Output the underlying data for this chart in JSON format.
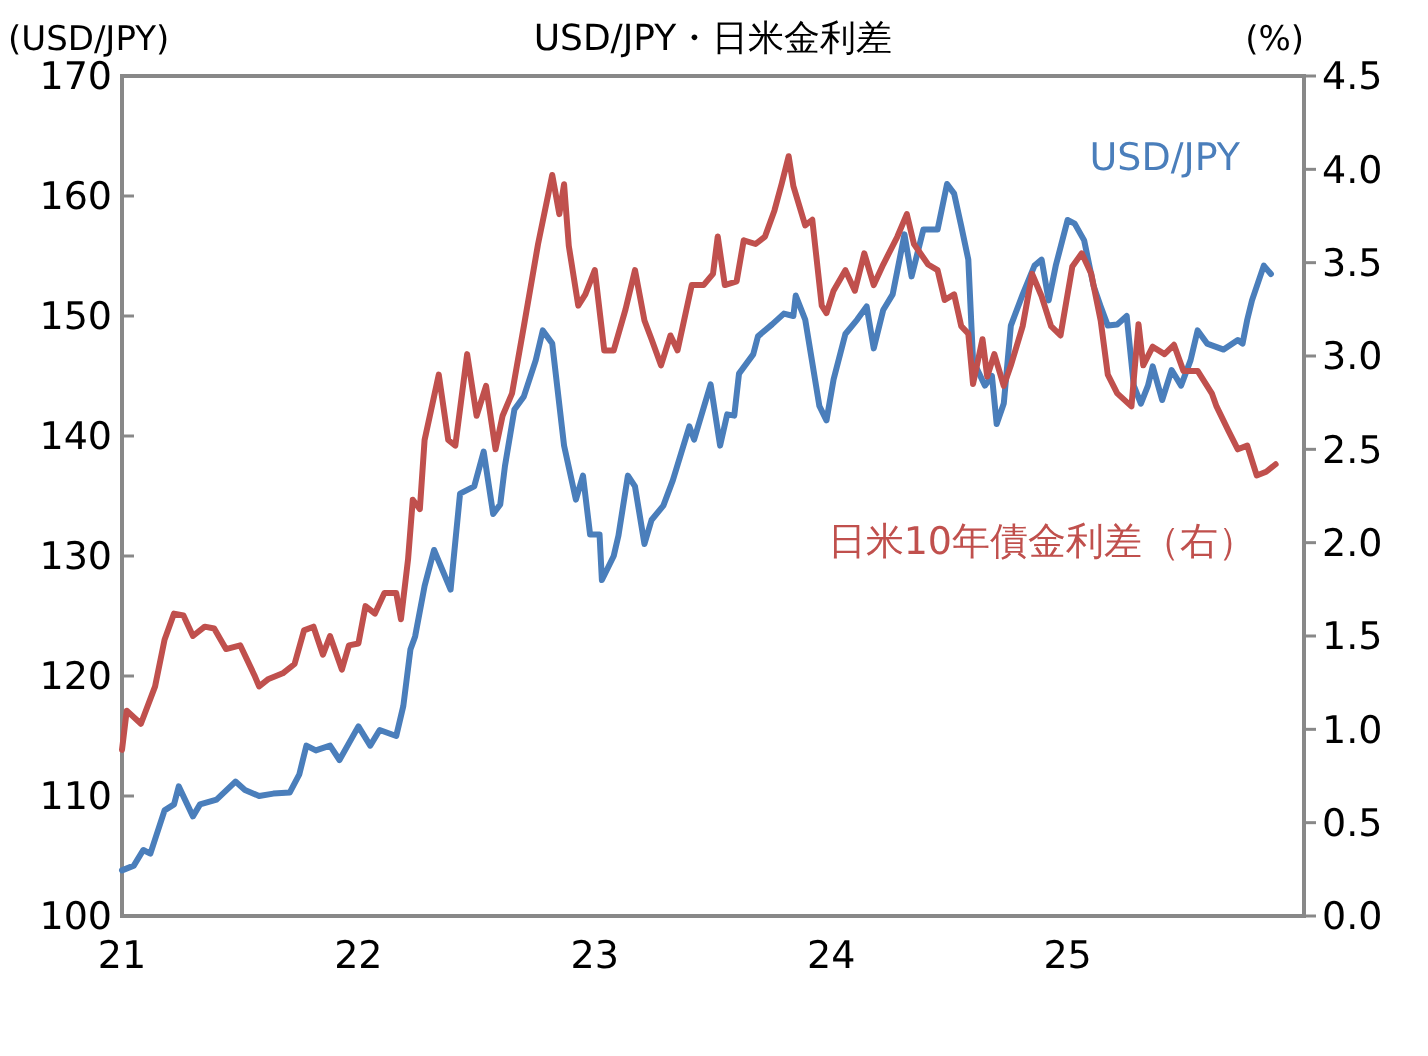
{
  "chart_data": {
    "type": "line",
    "title": "USD/JPY・日米金利差",
    "ylabel": "(USD/JPY)",
    "y2label": "(%)",
    "legend": false,
    "grid": false,
    "xlim": [
      2021,
      2026
    ],
    "xticks": [
      {
        "value": 2021,
        "label": "21"
      },
      {
        "value": 2022,
        "label": "22"
      },
      {
        "value": 2023,
        "label": "23"
      },
      {
        "value": 2024,
        "label": "24"
      },
      {
        "value": 2025,
        "label": "25"
      }
    ],
    "ylim": [
      100,
      170
    ],
    "yticks": [
      100,
      110,
      120,
      130,
      140,
      150,
      160,
      170
    ],
    "y2lim": [
      0,
      4.5
    ],
    "y2ticks": [
      {
        "value": 0,
        "label": "0.0"
      },
      {
        "value": 0.5,
        "label": "0.5"
      },
      {
        "value": 1,
        "label": "1.0"
      },
      {
        "value": 1.5,
        "label": "1.5"
      },
      {
        "value": 2,
        "label": "2.0"
      },
      {
        "value": 2.5,
        "label": "2.5"
      },
      {
        "value": 3,
        "label": "3.0"
      },
      {
        "value": 3.5,
        "label": "3.5"
      },
      {
        "value": 4,
        "label": "4.0"
      },
      {
        "value": 4.5,
        "label": "4.5"
      }
    ],
    "series": [
      {
        "name": "USD/JPY",
        "color": "#4a7ebb",
        "x": [
          2021.0,
          2021.05,
          2021.09,
          2021.12,
          2021.18,
          2021.22,
          2021.24,
          2021.3,
          2021.33,
          2021.4,
          2021.48,
          2021.52,
          2021.58,
          2021.64,
          2021.71,
          2021.75,
          2021.78,
          2021.82,
          2021.88,
          2021.92,
          2022.0,
          2022.05,
          2022.09,
          2022.16,
          2022.19,
          2022.22,
          2022.24,
          2022.28,
          2022.32,
          2022.39,
          2022.43,
          2022.49,
          2022.53,
          2022.57,
          2022.6,
          2022.62,
          2022.66,
          2022.7,
          2022.75,
          2022.78,
          2022.82,
          2022.87,
          2022.92,
          2022.95,
          2022.98,
          2023.02,
          2023.03,
          2023.08,
          2023.1,
          2023.14,
          2023.17,
          2023.21,
          2023.24,
          2023.29,
          2023.33,
          2023.4,
          2023.42,
          2023.49,
          2023.53,
          2023.56,
          2023.59,
          2023.61,
          2023.67,
          2023.69,
          2023.75,
          2023.8,
          2023.84,
          2023.85,
          2023.89,
          2023.95,
          2023.98,
          2024.01,
          2024.06,
          2024.11,
          2024.15,
          2024.18,
          2024.22,
          2024.26,
          2024.31,
          2024.34,
          2024.39,
          2024.45,
          2024.49,
          2024.52,
          2024.55,
          2024.58,
          2024.6,
          2024.65,
          2024.68,
          2024.7,
          2024.73,
          2024.76,
          2024.81,
          2024.86,
          2024.89,
          2024.92,
          2024.95,
          2025.0,
          2025.03,
          2025.07,
          2025.11,
          2025.14,
          2025.17,
          2025.21,
          2025.25,
          2025.28,
          2025.31,
          2025.34,
          2025.36,
          2025.4,
          2025.44,
          2025.48,
          2025.52,
          2025.55,
          2025.59,
          2025.66,
          2025.72,
          2025.74,
          2025.76,
          2025.78,
          2025.83,
          2025.86
        ],
        "values": [
          103.8,
          104.2,
          105.5,
          105.2,
          108.8,
          109.3,
          110.8,
          108.3,
          109.3,
          109.7,
          111.2,
          110.5,
          110,
          110.2,
          110.3,
          111.8,
          114.2,
          113.8,
          114.2,
          113,
          115.8,
          114.2,
          115.5,
          115,
          117.5,
          122.2,
          123.3,
          127.5,
          130.5,
          127.2,
          135.2,
          135.8,
          138.7,
          133.5,
          134.3,
          137.5,
          142.2,
          143.3,
          146.3,
          148.8,
          147.7,
          139.2,
          134.7,
          136.7,
          131.8,
          131.8,
          128,
          130,
          131.7,
          136.7,
          135.8,
          131,
          133,
          134.2,
          136.3,
          140.8,
          139.7,
          144.3,
          139.2,
          141.8,
          141.7,
          145.2,
          146.8,
          148.3,
          149.3,
          150.2,
          150,
          151.7,
          149.7,
          142.5,
          141.3,
          144.7,
          148.5,
          149.7,
          150.8,
          147.3,
          150.5,
          151.8,
          156.8,
          153.3,
          157.2,
          157.2,
          161,
          160.2,
          157.5,
          154.7,
          146.3,
          144.2,
          145,
          141,
          142.7,
          149.2,
          151.8,
          154.2,
          154.7,
          151.3,
          154.2,
          158,
          157.7,
          156.3,
          152.5,
          150.8,
          149.2,
          149.3,
          150,
          144.2,
          142.7,
          144.2,
          145.8,
          143,
          145.5,
          144.2,
          146.3,
          148.8,
          147.7,
          147.2,
          148,
          147.7,
          149.7,
          151.3,
          154.2,
          153.5
        ]
      },
      {
        "name": "日米10年債金利差（右）",
        "color": "#c0504d",
        "axis": "y2",
        "x": [
          2021.0,
          2021.02,
          2021.08,
          2021.14,
          2021.18,
          2021.22,
          2021.26,
          2021.3,
          2021.35,
          2021.39,
          2021.44,
          2021.5,
          2021.56,
          2021.58,
          2021.62,
          2021.68,
          2021.73,
          2021.77,
          2021.81,
          2021.85,
          2021.88,
          2021.93,
          2021.96,
          2022.0,
          2022.03,
          2022.07,
          2022.11,
          2022.16,
          2022.18,
          2022.21,
          2022.23,
          2022.26,
          2022.28,
          2022.34,
          2022.38,
          2022.41,
          2022.46,
          2022.5,
          2022.54,
          2022.58,
          2022.61,
          2022.65,
          2022.7,
          2022.76,
          2022.82,
          2022.85,
          2022.87,
          2022.89,
          2022.93,
          2022.96,
          2023.0,
          2023.04,
          2023.08,
          2023.13,
          2023.17,
          2023.21,
          2023.24,
          2023.28,
          2023.32,
          2023.35,
          2023.41,
          2023.46,
          2023.5,
          2023.52,
          2023.55,
          2023.6,
          2023.63,
          2023.68,
          2023.72,
          2023.76,
          2023.79,
          2023.82,
          2023.84,
          2023.89,
          2023.92,
          2023.96,
          2023.98,
          2024.01,
          2024.06,
          2024.1,
          2024.14,
          2024.18,
          2024.22,
          2024.28,
          2024.32,
          2024.35,
          2024.41,
          2024.45,
          2024.48,
          2024.52,
          2024.55,
          2024.58,
          2024.6,
          2024.64,
          2024.66,
          2024.69,
          2024.73,
          2024.76,
          2024.81,
          2024.85,
          2024.89,
          2024.93,
          2024.97,
          2025.02,
          2025.06,
          2025.1,
          2025.14,
          2025.17,
          2025.21,
          2025.27,
          2025.3,
          2025.32,
          2025.36,
          2025.41,
          2025.45,
          2025.49,
          2025.55,
          2025.61,
          2025.63,
          2025.68,
          2025.72,
          2025.76,
          2025.8,
          2025.84,
          2025.88
        ],
        "values": [
          0.89,
          1.1,
          1.03,
          1.23,
          1.48,
          1.62,
          1.61,
          1.5,
          1.55,
          1.54,
          1.43,
          1.45,
          1.29,
          1.23,
          1.27,
          1.3,
          1.35,
          1.53,
          1.55,
          1.4,
          1.5,
          1.32,
          1.45,
          1.46,
          1.66,
          1.62,
          1.73,
          1.73,
          1.59,
          1.91,
          2.23,
          2.18,
          2.55,
          2.9,
          2.55,
          2.52,
          3.01,
          2.68,
          2.84,
          2.5,
          2.68,
          2.8,
          3.16,
          3.6,
          3.97,
          3.76,
          3.92,
          3.59,
          3.27,
          3.33,
          3.46,
          3.03,
          3.03,
          3.25,
          3.46,
          3.19,
          3.09,
          2.95,
          3.11,
          3.03,
          3.38,
          3.38,
          3.44,
          3.64,
          3.38,
          3.4,
          3.62,
          3.6,
          3.64,
          3.78,
          3.92,
          4.07,
          3.91,
          3.7,
          3.73,
          3.27,
          3.23,
          3.35,
          3.46,
          3.35,
          3.55,
          3.38,
          3.49,
          3.64,
          3.76,
          3.6,
          3.49,
          3.46,
          3.3,
          3.33,
          3.16,
          3.12,
          2.85,
          3.09,
          2.89,
          3.01,
          2.84,
          2.95,
          3.16,
          3.44,
          3.32,
          3.16,
          3.11,
          3.48,
          3.55,
          3.44,
          3.19,
          2.9,
          2.8,
          2.73,
          3.17,
          2.95,
          3.05,
          3.01,
          3.06,
          2.92,
          2.92,
          2.8,
          2.73,
          2.6,
          2.5,
          2.52,
          2.36,
          2.38,
          2.42
        ]
      }
    ]
  }
}
